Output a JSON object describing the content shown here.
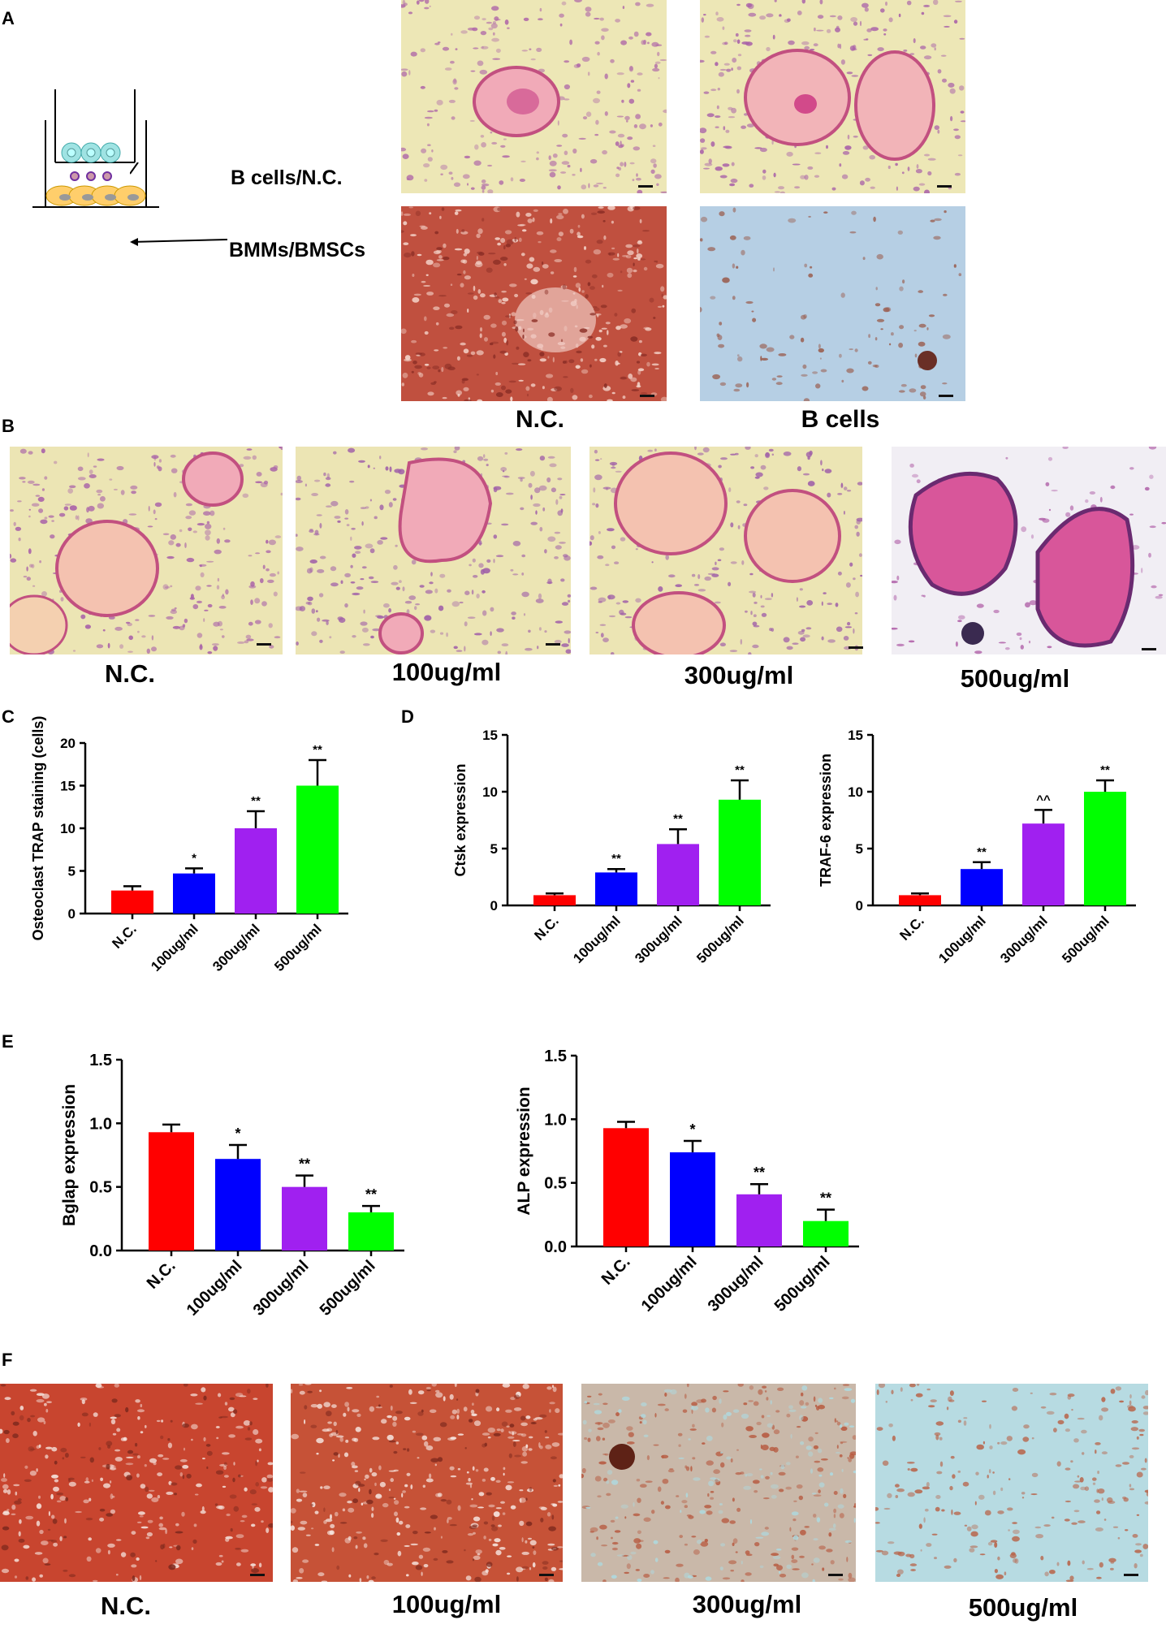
{
  "panels": {
    "A": {
      "letter": "A",
      "upper_label": "B cells/N.C.",
      "lower_label": "BMMs/BMSCs",
      "captions": [
        "N.C.",
        "B cells"
      ]
    },
    "B": {
      "letter": "B",
      "captions": [
        "N.C.",
        "100ug/ml",
        "300ug/ml",
        "500ug/ml"
      ]
    },
    "C": {
      "letter": "C"
    },
    "D": {
      "letter": "D"
    },
    "E": {
      "letter": "E"
    },
    "F": {
      "letter": "F",
      "captions": [
        "N.C.",
        "100ug/ml",
        "300ug/ml",
        "500ug/ml"
      ]
    }
  },
  "colors": {
    "nc": "#ff0000",
    "c100": "#0000ff",
    "c300": "#a020f0",
    "c500": "#00ff00"
  },
  "chart_data": [
    {
      "id": "C",
      "type": "bar",
      "categories": [
        "N.C.",
        "100ug/ml",
        "300ug/ml",
        "500ug/ml"
      ],
      "values": [
        2.7,
        4.7,
        10.0,
        15.0
      ],
      "errors": [
        0.5,
        0.6,
        2.0,
        3.0
      ],
      "significance": [
        "",
        "*",
        "**",
        "**"
      ],
      "ylabel": "Osteoclast TRAP staining (cells)",
      "ylim": [
        0,
        20
      ],
      "yticks": [
        0,
        5,
        10,
        15,
        20
      ]
    },
    {
      "id": "D1",
      "type": "bar",
      "categories": [
        "N.C.",
        "100ug/ml",
        "300ug/ml",
        "500ug/ml"
      ],
      "values": [
        0.9,
        2.9,
        5.4,
        9.3
      ],
      "errors": [
        0.15,
        0.3,
        1.3,
        1.7
      ],
      "significance": [
        "",
        "**",
        "**",
        "**"
      ],
      "ylabel": "Ctsk expression",
      "ylim": [
        0,
        15
      ],
      "yticks": [
        0,
        5,
        10,
        15
      ]
    },
    {
      "id": "D2",
      "type": "bar",
      "categories": [
        "N.C.",
        "100ug/ml",
        "300ug/ml",
        "500ug/ml"
      ],
      "values": [
        0.9,
        3.2,
        7.2,
        10.0
      ],
      "errors": [
        0.15,
        0.6,
        1.2,
        1.0
      ],
      "significance": [
        "",
        "**",
        "^^",
        "**"
      ],
      "ylabel": "TRAF-6 expression",
      "ylim": [
        0,
        15
      ],
      "yticks": [
        0,
        5,
        10,
        15
      ]
    },
    {
      "id": "E1",
      "type": "bar",
      "categories": [
        "N.C.",
        "100ug/ml",
        "300ug/ml",
        "500ug/ml"
      ],
      "values": [
        0.93,
        0.72,
        0.5,
        0.3
      ],
      "errors": [
        0.06,
        0.11,
        0.09,
        0.05
      ],
      "significance": [
        "",
        "*",
        "**",
        "**"
      ],
      "ylabel": "Bglap expression",
      "ylim": [
        0,
        1.5
      ],
      "yticks": [
        "0.0",
        "0.5",
        "1.0",
        "1.5"
      ]
    },
    {
      "id": "E2",
      "type": "bar",
      "categories": [
        "N.C.",
        "100ug/ml",
        "300ug/ml",
        "500ug/ml"
      ],
      "values": [
        0.93,
        0.74,
        0.41,
        0.2
      ],
      "errors": [
        0.05,
        0.09,
        0.08,
        0.09
      ],
      "significance": [
        "",
        "*",
        "**",
        "**"
      ],
      "ylabel": "ALP expression",
      "ylim": [
        0,
        1.5
      ],
      "yticks": [
        "0.0",
        "0.5",
        "1.0",
        "1.5"
      ]
    }
  ]
}
